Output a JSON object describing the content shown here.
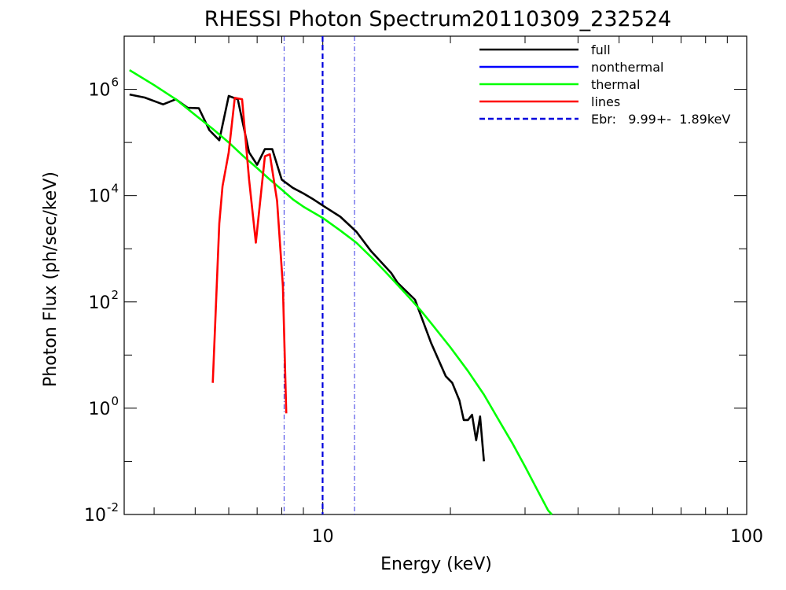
{
  "chart_data": {
    "type": "line",
    "title": "RHESSI Photon Spectrum20110309_232524",
    "xlabel": "Energy (keV)",
    "ylabel": "Photon Flux (ph/sec/keV)",
    "x_scale": "log",
    "y_scale": "log",
    "xlim": [
      3.4,
      100
    ],
    "ylim": [
      0.01,
      10000000
    ],
    "grid": false,
    "legend_position": "top-right",
    "x_tick_labels": [
      {
        "value": 10,
        "label": "10"
      },
      {
        "value": 100,
        "label": "100"
      }
    ],
    "y_tick_labels": [
      {
        "value": 0.01,
        "base": "10",
        "exp": "-2"
      },
      {
        "value": 1,
        "base": "10",
        "exp": "0"
      },
      {
        "value": 100,
        "base": "10",
        "exp": "2"
      },
      {
        "value": 10000,
        "base": "10",
        "exp": "4"
      },
      {
        "value": 1000000,
        "base": "10",
        "exp": "6"
      }
    ],
    "series": [
      {
        "name": "full",
        "color": "#000000",
        "points": [
          [
            3.5,
            800000
          ],
          [
            3.8,
            700000
          ],
          [
            4.2,
            520000
          ],
          [
            4.5,
            650000
          ],
          [
            4.8,
            450000
          ],
          [
            5.1,
            440000
          ],
          [
            5.4,
            170000
          ],
          [
            5.7,
            110000
          ],
          [
            6.0,
            750000
          ],
          [
            6.3,
            650000
          ],
          [
            6.7,
            65000
          ],
          [
            7.0,
            38000
          ],
          [
            7.3,
            75000
          ],
          [
            7.6,
            75000
          ],
          [
            8.0,
            20000
          ],
          [
            8.5,
            14000
          ],
          [
            9.0,
            11000
          ],
          [
            9.5,
            8500
          ],
          [
            10,
            6500
          ],
          [
            11,
            4000
          ],
          [
            12,
            2100
          ],
          [
            13,
            900
          ],
          [
            14.5,
            350
          ],
          [
            15,
            230
          ],
          [
            16.5,
            110
          ],
          [
            18,
            17
          ],
          [
            19.5,
            4
          ],
          [
            20.2,
            3
          ],
          [
            21.0,
            1.4
          ],
          [
            21.5,
            0.6
          ],
          [
            22.0,
            0.6
          ],
          [
            22.5,
            0.75
          ],
          [
            23.0,
            0.25
          ],
          [
            23.5,
            0.7
          ],
          [
            24.0,
            0.1
          ]
        ]
      },
      {
        "name": "nonthermal",
        "color": "#0000ff",
        "points": []
      },
      {
        "name": "thermal",
        "color": "#00ff00",
        "points": [
          [
            3.5,
            2300000
          ],
          [
            4,
            1200000
          ],
          [
            4.5,
            650000
          ],
          [
            5,
            330000
          ],
          [
            5.5,
            180000
          ],
          [
            6,
            100000
          ],
          [
            6.5,
            55000
          ],
          [
            7,
            33000
          ],
          [
            7.5,
            20000
          ],
          [
            8,
            13000
          ],
          [
            8.5,
            8500
          ],
          [
            9,
            6200
          ],
          [
            10,
            3800
          ],
          [
            11,
            2200
          ],
          [
            12,
            1300
          ],
          [
            13,
            700
          ],
          [
            14,
            380
          ],
          [
            15,
            210
          ],
          [
            16,
            120
          ],
          [
            17,
            70
          ],
          [
            18,
            40
          ],
          [
            20,
            14
          ],
          [
            22,
            5
          ],
          [
            24,
            1.8
          ],
          [
            26,
            0.6
          ],
          [
            28,
            0.22
          ],
          [
            30,
            0.08
          ],
          [
            32,
            0.03
          ],
          [
            34,
            0.012
          ],
          [
            34.7,
            0.009
          ]
        ]
      },
      {
        "name": "lines",
        "color": "#ff0000",
        "points": [
          [
            5.5,
            3
          ],
          [
            5.7,
            3000
          ],
          [
            5.8,
            15000
          ],
          [
            6.0,
            65000
          ],
          [
            6.2,
            690000
          ],
          [
            6.45,
            650000
          ],
          [
            6.7,
            20000
          ],
          [
            6.95,
            1300
          ],
          [
            7.3,
            55000
          ],
          [
            7.5,
            60000
          ],
          [
            7.8,
            8000
          ],
          [
            8.05,
            200
          ],
          [
            8.2,
            0.8
          ]
        ]
      }
    ],
    "vertical_lines": [
      {
        "x": 9.99,
        "style": "dashed",
        "color": "#0000dd"
      },
      {
        "x": 8.1,
        "style": "dash-dot",
        "color": "#0000dd"
      },
      {
        "x": 11.88,
        "style": "dash-dot",
        "color": "#0000dd"
      }
    ],
    "legend": [
      {
        "label": "full",
        "color": "#000000",
        "style": "solid"
      },
      {
        "label": "nonthermal",
        "color": "#0000ff",
        "style": "solid"
      },
      {
        "label": "thermal",
        "color": "#00ff00",
        "style": "solid"
      },
      {
        "label": "lines",
        "color": "#ff0000",
        "style": "solid"
      },
      {
        "label": "Ebr:   9.99+-  1.89keV",
        "color": "#0000dd",
        "style": "dashed"
      }
    ]
  }
}
